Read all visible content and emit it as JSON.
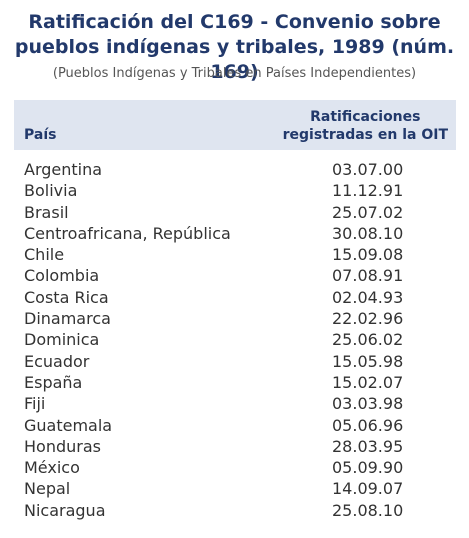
{
  "title": {
    "lines": [
      "Ratificación del C169 - Convenio sobre",
      "pueblos indígenas y tribales, 1989 (núm. 169)"
    ]
  },
  "subtitle": "(Pueblos Indígenas y Tribales en Países Independientes)",
  "table": {
    "header": {
      "country": "País",
      "date": [
        "Ratificaciones",
        "registradas en la OIT"
      ]
    },
    "rows": [
      [
        "Argentina",
        "03.07.00"
      ],
      [
        "Bolivia",
        "11.12.91"
      ],
      [
        "Brasil",
        "25.07.02"
      ],
      [
        "Centroafricana, República",
        "30.08.10"
      ],
      [
        "Chile",
        "15.09.08"
      ],
      [
        "Colombia",
        "07.08.91"
      ],
      [
        "Costa Rica",
        "02.04.93"
      ],
      [
        "Dinamarca",
        "22.02.96"
      ],
      [
        "Dominica",
        "25.06.02"
      ],
      [
        "Ecuador",
        "15.05.98"
      ],
      [
        "España",
        "15.02.07"
      ],
      [
        "Fiji",
        "03.03.98"
      ],
      [
        "Guatemala",
        "05.06.96"
      ],
      [
        "Honduras",
        "28.03.95"
      ],
      [
        "México",
        "05.09.90"
      ],
      [
        "Nepal",
        "14.09.07"
      ],
      [
        "Nicaragua",
        "25.08.10"
      ]
    ]
  }
}
